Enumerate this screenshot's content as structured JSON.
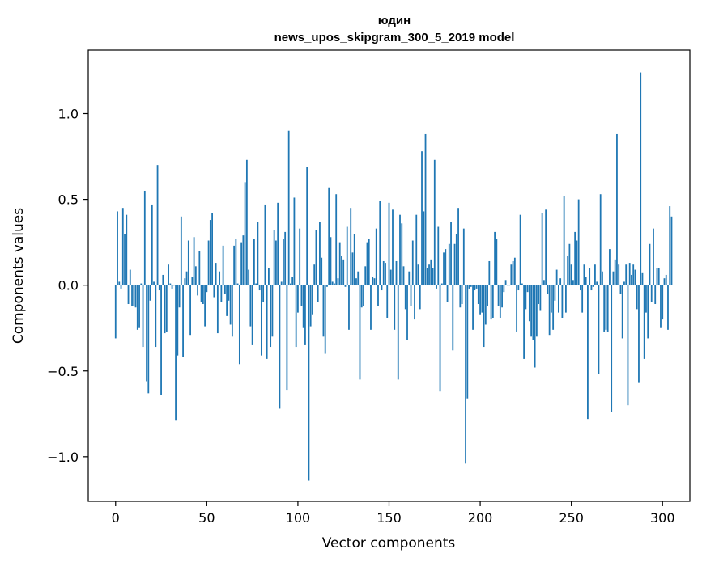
{
  "chart_data": {
    "type": "bar",
    "title_line1": "юдин",
    "title_line2": "news_upos_skipgram_300_5_2019 model",
    "xlabel": "Vector components",
    "ylabel": "Components values",
    "xlim": [
      -15,
      315
    ],
    "ylim": [
      -1.26,
      1.37
    ],
    "xticks": [
      0,
      50,
      100,
      150,
      200,
      250,
      300
    ],
    "xtick_labels": [
      "0",
      "50",
      "100",
      "150",
      "200",
      "250",
      "300"
    ],
    "yticks": [
      -1.0,
      -0.5,
      0.0,
      0.5,
      1.0
    ],
    "ytick_labels": [
      "−1.0",
      "−0.5",
      "0.0",
      "0.5",
      "1.0"
    ],
    "bar_color": "#1f77b4",
    "grid": false,
    "values": [
      -0.31,
      0.43,
      0.02,
      -0.02,
      0.45,
      0.3,
      0.41,
      -0.11,
      0.09,
      -0.12,
      -0.12,
      -0.13,
      -0.26,
      -0.25,
      0.01,
      -0.36,
      0.55,
      -0.56,
      -0.63,
      -0.09,
      0.47,
      0.02,
      -0.36,
      0.7,
      -0.03,
      -0.64,
      0.06,
      -0.28,
      -0.27,
      0.12,
      0.01,
      -0.02,
      0.0,
      -0.79,
      -0.41,
      -0.13,
      0.4,
      -0.42,
      0.04,
      0.08,
      0.26,
      -0.29,
      0.05,
      0.28,
      0.11,
      -0.06,
      0.2,
      -0.1,
      -0.11,
      -0.24,
      -0.04,
      0.26,
      0.38,
      0.42,
      -0.07,
      0.13,
      -0.28,
      0.08,
      -0.1,
      0.23,
      -0.05,
      -0.18,
      -0.09,
      -0.23,
      -0.3,
      0.23,
      0.27,
      0.01,
      -0.46,
      0.25,
      0.29,
      0.6,
      0.73,
      0.09,
      -0.24,
      -0.35,
      0.27,
      0.01,
      0.37,
      -0.03,
      -0.41,
      -0.1,
      0.47,
      -0.43,
      0.1,
      -0.36,
      -0.3,
      0.32,
      0.26,
      0.48,
      -0.72,
      0.02,
      0.27,
      0.31,
      -0.61,
      0.9,
      0.01,
      0.05,
      0.51,
      -0.36,
      -0.16,
      0.33,
      -0.12,
      -0.25,
      -0.35,
      0.69,
      -1.14,
      -0.24,
      -0.17,
      0.12,
      0.32,
      -0.1,
      0.37,
      0.16,
      -0.3,
      -0.4,
      -0.01,
      0.57,
      0.28,
      0.02,
      0.01,
      0.53,
      0.04,
      0.25,
      0.17,
      0.15,
      -0.01,
      0.34,
      -0.26,
      0.45,
      0.19,
      0.3,
      0.04,
      0.08,
      -0.55,
      -0.13,
      -0.12,
      0.11,
      0.25,
      0.27,
      -0.26,
      0.05,
      0.04,
      0.33,
      -0.12,
      0.49,
      -0.03,
      0.14,
      0.13,
      -0.19,
      0.48,
      0.09,
      0.44,
      -0.26,
      0.14,
      -0.55,
      0.41,
      0.36,
      0.11,
      -0.14,
      -0.32,
      0.08,
      -0.12,
      0.26,
      -0.2,
      0.41,
      0.12,
      -0.14,
      0.78,
      0.43,
      0.88,
      0.1,
      0.12,
      0.15,
      0.1,
      0.73,
      -0.02,
      0.34,
      -0.62,
      0.01,
      0.19,
      0.21,
      -0.1,
      0.24,
      0.37,
      -0.38,
      0.24,
      0.3,
      0.45,
      -0.13,
      -0.11,
      0.33,
      -1.04,
      -0.66,
      -0.02,
      -0.01,
      -0.26,
      -0.03,
      -0.02,
      -0.11,
      -0.17,
      -0.16,
      -0.36,
      -0.23,
      -0.12,
      0.14,
      -0.2,
      -0.19,
      0.31,
      0.27,
      -0.12,
      -0.19,
      -0.13,
      -0.04,
      0.03,
      0.0,
      0.0,
      0.12,
      0.14,
      0.16,
      -0.27,
      -0.03,
      0.41,
      0.01,
      -0.43,
      -0.14,
      -0.04,
      -0.21,
      -0.3,
      -0.32,
      -0.48,
      -0.3,
      -0.11,
      -0.15,
      0.42,
      0.03,
      0.44,
      -0.05,
      -0.29,
      -0.16,
      -0.26,
      -0.09,
      0.09,
      -0.16,
      0.04,
      -0.19,
      0.52,
      -0.16,
      0.17,
      0.24,
      0.12,
      0.03,
      0.31,
      0.26,
      0.5,
      -0.03,
      -0.16,
      0.12,
      0.05,
      -0.78,
      0.1,
      -0.03,
      -0.01,
      0.12,
      0.02,
      -0.52,
      0.53,
      0.08,
      -0.27,
      -0.26,
      -0.27,
      0.21,
      -0.74,
      0.08,
      0.15,
      0.88,
      0.12,
      -0.05,
      -0.31,
      0.02,
      0.12,
      -0.7,
      0.13,
      0.06,
      0.12,
      0.09,
      -0.14,
      -0.57,
      1.24,
      0.07,
      -0.43,
      -0.16,
      -0.31,
      0.24,
      -0.1,
      0.33,
      -0.11,
      0.1,
      0.1,
      -0.25,
      -0.2,
      0.04,
      0.06,
      -0.26,
      0.46,
      0.4
    ]
  }
}
